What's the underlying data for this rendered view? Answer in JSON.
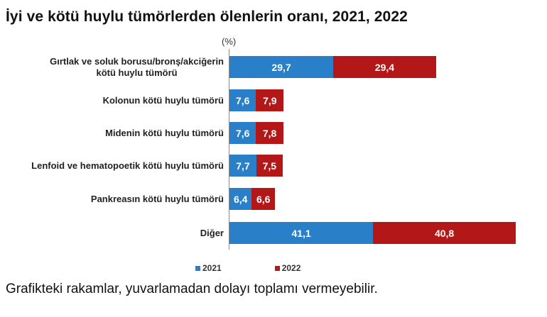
{
  "title": "İyi ve kötü huylu tümörlerden ölenlerin oranı, 2021, 2022",
  "unit_label": "(%)",
  "footnote": "Grafikteki rakamlar, yuvarlamadan dolayı toplamı vermeyebilir.",
  "colors": {
    "2021": "#2a7fc9",
    "2022": "#b31717"
  },
  "legend": [
    {
      "label": "2021",
      "color": "#2a7fc9"
    },
    {
      "label": "2022",
      "color": "#b31717"
    }
  ],
  "rows": [
    {
      "label_line1": "Gırtlak ve soluk borusu/bronş/akciğerin",
      "label_line2": "kötü huylu tümörü",
      "v2021": "29,7",
      "v2022": "29,4"
    },
    {
      "label_line1": "Kolonun kötü huylu tümörü",
      "label_line2": "",
      "v2021": "7,6",
      "v2022": "7,9"
    },
    {
      "label_line1": "Midenin kötü huylu tümörü",
      "label_line2": "",
      "v2021": "7,6",
      "v2022": "7,8"
    },
    {
      "label_line1": "Lenfoid ve hematopoetik kötü huylu tümörü",
      "label_line2": "",
      "v2021": "7,7",
      "v2022": "7,5"
    },
    {
      "label_line1": "Pankreasın kötü huylu tümörü",
      "label_line2": "",
      "v2021": "6,4",
      "v2022": "6,6"
    },
    {
      "label_line1": "Diğer",
      "label_line2": "",
      "v2021": "41,1",
      "v2022": "40,8"
    }
  ],
  "chart_data": {
    "type": "bar",
    "orientation": "horizontal",
    "stacked": true,
    "title": "İyi ve kötü huylu tümörlerden ölenlerin oranı, 2021, 2022",
    "xlabel": "",
    "ylabel": "",
    "unit": "(%)",
    "categories": [
      "Gırtlak ve soluk borusu/bronş/akciğerin kötü huylu tümörü",
      "Kolonun kötü huylu tümörü",
      "Midenin kötü huylu tümörü",
      "Lenfoid ve hematopoetik kötü huylu tümörü",
      "Pankreasın kötü huylu tümörü",
      "Diğer"
    ],
    "series": [
      {
        "name": "2021",
        "color": "#2a7fc9",
        "values": [
          29.7,
          7.6,
          7.6,
          7.7,
          6.4,
          41.1
        ]
      },
      {
        "name": "2022",
        "color": "#b31717",
        "values": [
          29.4,
          7.9,
          7.8,
          7.5,
          6.6,
          40.8
        ]
      }
    ],
    "data_labels": true,
    "grid": false,
    "legend_position": "bottom",
    "annotations": [
      "Grafikteki rakamlar, yuvarlamadan dolayı toplamı vermeyebilir."
    ]
  }
}
